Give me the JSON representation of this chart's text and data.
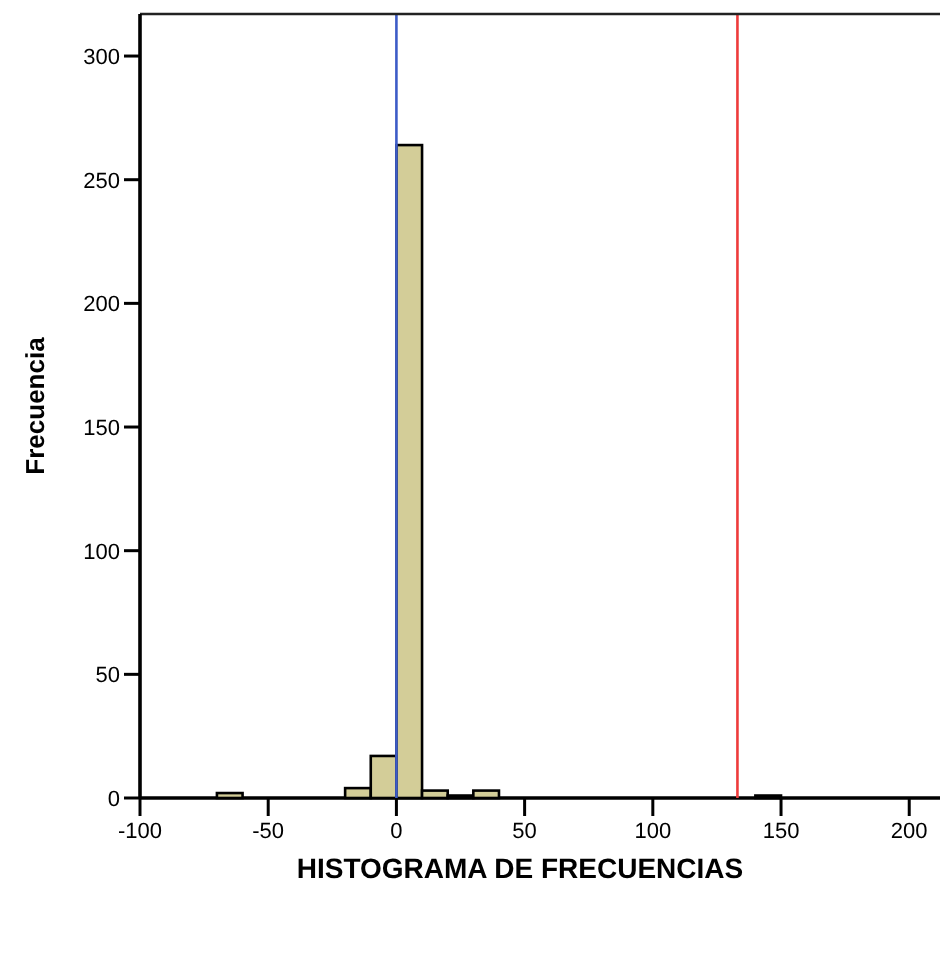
{
  "chart_data": {
    "type": "histogram",
    "xlabel": "HISTOGRAMA DE FRECUENCIAS",
    "ylabel": "Frecuencia",
    "bins": [
      -70,
      -60,
      -50,
      -40,
      -30,
      -20,
      -10,
      0,
      10,
      20,
      30,
      40,
      50,
      60,
      70,
      80,
      90,
      100,
      110,
      120,
      130,
      140,
      150
    ],
    "values": [
      2,
      0,
      0,
      0,
      0,
      4,
      17,
      264,
      3,
      1,
      3,
      0,
      0,
      0,
      0,
      0,
      0,
      0,
      0,
      0,
      0,
      1
    ],
    "color": "#d3cd98",
    "xlim": [
      -100,
      212
    ],
    "xticks": [
      -100,
      -50,
      0,
      50,
      100,
      150,
      200
    ],
    "ylim": [
      0,
      317
    ],
    "yticks": [
      0,
      50,
      100,
      150,
      200,
      250,
      300
    ],
    "grid": false,
    "ref_lines": [
      {
        "axis": "x",
        "value": 0,
        "color": "#3d5cc7"
      },
      {
        "axis": "x",
        "value": 133,
        "color": "#ee3b3b"
      }
    ]
  }
}
